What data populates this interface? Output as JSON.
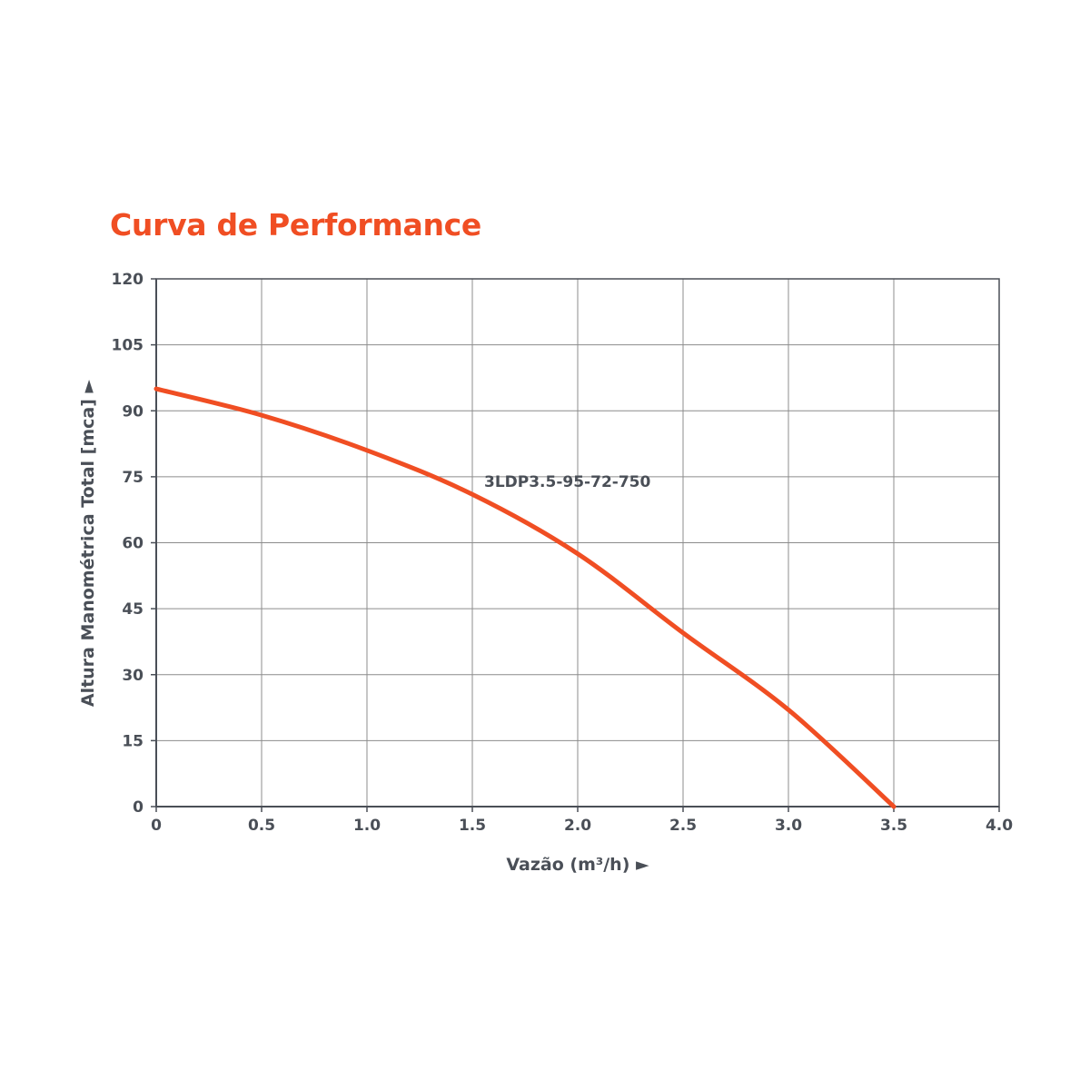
{
  "colors": {
    "accent": "#F04E23",
    "text": "#4A4F57",
    "grid": "#8C8C8C",
    "axis": "#4A4F57"
  },
  "chart_data": {
    "type": "line",
    "title": "Curva de Performance",
    "xlabel": "Vazão (m³/h) ►",
    "ylabel": "Altura Manométrica Total [mca] ►",
    "xlim": [
      0,
      4.0
    ],
    "ylim": [
      0,
      120
    ],
    "xticks": [
      "0",
      "0.5",
      "1.0",
      "1.5",
      "2.0",
      "2.5",
      "3.0",
      "3.5",
      "4.0"
    ],
    "yticks": [
      "0",
      "15",
      "30",
      "45",
      "60",
      "75",
      "90",
      "105",
      "120"
    ],
    "grid": true,
    "series": [
      {
        "name": "3LDP3.5-95-72-750",
        "x": [
          0,
          0.5,
          1.0,
          1.5,
          2.0,
          2.5,
          3.0,
          3.5
        ],
        "y": [
          95,
          89,
          81,
          71,
          57.5,
          39.5,
          22,
          0
        ]
      }
    ]
  }
}
